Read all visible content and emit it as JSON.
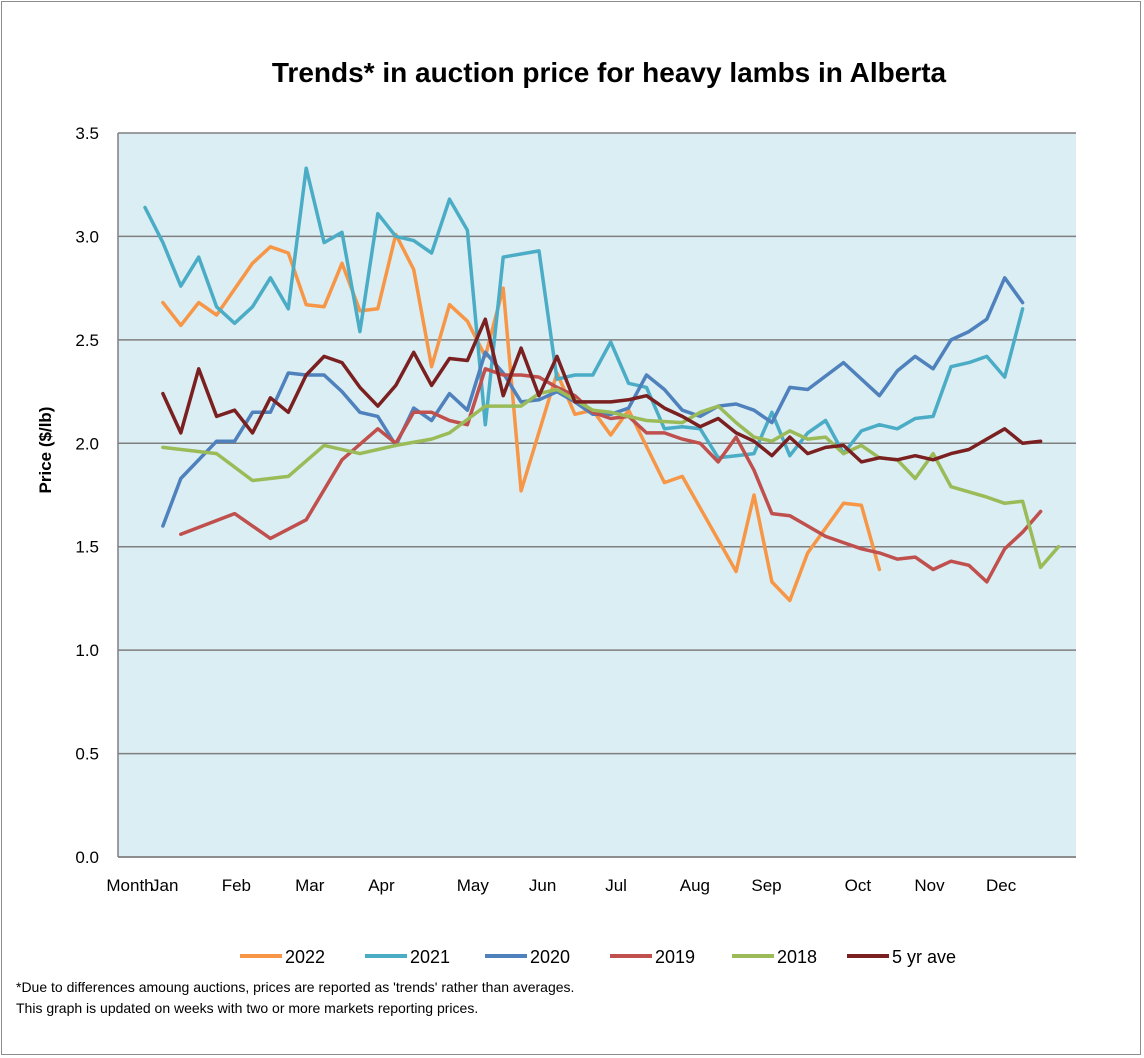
{
  "chart_data": {
    "type": "line",
    "title": "Trends* in auction price for heavy lambs in Alberta",
    "ylabel": "Price ($/lb)",
    "ylim": [
      0,
      3.5
    ],
    "yticks": [
      "0.0",
      "0.5",
      "1.0",
      "1.5",
      "2.0",
      "2.5",
      "3.0",
      "3.5"
    ],
    "x_first_label": "Month",
    "months": [
      "Jan",
      "Feb",
      "Mar",
      "Apr",
      "May",
      "Jun",
      "Jul",
      "Aug",
      "Sep",
      "Oct",
      "Nov",
      "Dec"
    ],
    "x_unit": "week",
    "grid": "horizontal",
    "legend_position": "bottom",
    "background_color": "#dbeef3",
    "series": [
      {
        "name": "2022",
        "color": "#f79646",
        "points": [
          [
            1,
            2.68
          ],
          [
            2,
            2.57
          ],
          [
            3,
            2.68
          ],
          [
            4,
            2.62
          ],
          [
            6,
            2.87
          ],
          [
            7,
            2.95
          ],
          [
            8,
            2.92
          ],
          [
            9,
            2.67
          ],
          [
            10,
            2.66
          ],
          [
            11,
            2.87
          ],
          [
            12,
            2.64
          ],
          [
            13,
            2.65
          ],
          [
            14,
            3.01
          ],
          [
            15,
            2.84
          ],
          [
            16,
            2.37
          ],
          [
            17,
            2.67
          ],
          [
            18,
            2.59
          ],
          [
            19,
            2.42
          ],
          [
            20,
            2.75
          ],
          [
            21,
            1.77
          ],
          [
            23,
            2.34
          ],
          [
            24,
            2.14
          ],
          [
            25,
            2.16
          ],
          [
            26,
            2.04
          ],
          [
            27,
            2.16
          ],
          [
            29,
            1.81
          ],
          [
            30,
            1.84
          ],
          [
            33,
            1.38
          ],
          [
            34,
            1.75
          ],
          [
            35,
            1.33
          ],
          [
            36,
            1.24
          ],
          [
            37,
            1.47
          ],
          [
            39,
            1.71
          ],
          [
            40,
            1.7
          ],
          [
            41,
            1.39
          ]
        ]
      },
      {
        "name": "2021",
        "color": "#4bacc6",
        "points": [
          [
            0,
            3.14
          ],
          [
            1,
            2.97
          ],
          [
            2,
            2.76
          ],
          [
            3,
            2.9
          ],
          [
            4,
            2.66
          ],
          [
            5,
            2.58
          ],
          [
            6,
            2.66
          ],
          [
            7,
            2.8
          ],
          [
            8,
            2.65
          ],
          [
            9,
            3.33
          ],
          [
            10,
            2.97
          ],
          [
            11,
            3.02
          ],
          [
            12,
            2.54
          ],
          [
            13,
            3.11
          ],
          [
            14,
            3.0
          ],
          [
            15,
            2.98
          ],
          [
            16,
            2.92
          ],
          [
            17,
            3.18
          ],
          [
            18,
            3.03
          ],
          [
            19,
            2.09
          ],
          [
            20,
            2.9
          ],
          [
            22,
            2.93
          ],
          [
            23,
            2.31
          ],
          [
            24,
            2.33
          ],
          [
            25,
            2.33
          ],
          [
            26,
            2.49
          ],
          [
            27,
            2.29
          ],
          [
            28,
            2.27
          ],
          [
            29,
            2.07
          ],
          [
            30,
            2.08
          ],
          [
            31,
            2.07
          ],
          [
            32,
            1.93
          ],
          [
            33,
            1.94
          ],
          [
            34,
            1.95
          ],
          [
            35,
            2.15
          ],
          [
            36,
            1.94
          ],
          [
            37,
            2.05
          ],
          [
            38,
            2.11
          ],
          [
            39,
            1.95
          ],
          [
            40,
            2.06
          ],
          [
            41,
            2.09
          ],
          [
            42,
            2.07
          ],
          [
            43,
            2.12
          ],
          [
            44,
            2.13
          ],
          [
            45,
            2.37
          ],
          [
            46,
            2.39
          ],
          [
            47,
            2.42
          ],
          [
            48,
            2.32
          ],
          [
            49,
            2.65
          ]
        ]
      },
      {
        "name": "2020",
        "color": "#4f81bd",
        "points": [
          [
            1,
            1.6
          ],
          [
            2,
            1.83
          ],
          [
            4,
            2.01
          ],
          [
            5,
            2.01
          ],
          [
            6,
            2.15
          ],
          [
            7,
            2.15
          ],
          [
            8,
            2.34
          ],
          [
            9,
            2.33
          ],
          [
            10,
            2.33
          ],
          [
            11,
            2.25
          ],
          [
            12,
            2.15
          ],
          [
            13,
            2.13
          ],
          [
            14,
            1.99
          ],
          [
            15,
            2.17
          ],
          [
            16,
            2.11
          ],
          [
            17,
            2.24
          ],
          [
            18,
            2.16
          ],
          [
            19,
            2.44
          ],
          [
            20,
            2.34
          ],
          [
            21,
            2.2
          ],
          [
            22,
            2.21
          ],
          [
            23,
            2.25
          ],
          [
            24,
            2.2
          ],
          [
            25,
            2.14
          ],
          [
            26,
            2.14
          ],
          [
            27,
            2.17
          ],
          [
            28,
            2.33
          ],
          [
            29,
            2.26
          ],
          [
            30,
            2.16
          ],
          [
            31,
            2.13
          ],
          [
            32,
            2.18
          ],
          [
            33,
            2.19
          ],
          [
            34,
            2.16
          ],
          [
            35,
            2.1
          ],
          [
            36,
            2.27
          ],
          [
            37,
            2.26
          ],
          [
            39,
            2.39
          ],
          [
            41,
            2.23
          ],
          [
            42,
            2.35
          ],
          [
            43,
            2.42
          ],
          [
            44,
            2.36
          ],
          [
            45,
            2.5
          ],
          [
            46,
            2.54
          ],
          [
            47,
            2.6
          ],
          [
            48,
            2.8
          ],
          [
            49,
            2.68
          ]
        ]
      },
      {
        "name": "2019",
        "color": "#c0504d",
        "points": [
          [
            2,
            1.56
          ],
          [
            5,
            1.66
          ],
          [
            7,
            1.54
          ],
          [
            9,
            1.63
          ],
          [
            11,
            1.92
          ],
          [
            13,
            2.07
          ],
          [
            14,
            2.0
          ],
          [
            15,
            2.15
          ],
          [
            16,
            2.15
          ],
          [
            17,
            2.11
          ],
          [
            18,
            2.09
          ],
          [
            19,
            2.36
          ],
          [
            20,
            2.33
          ],
          [
            21,
            2.33
          ],
          [
            22,
            2.32
          ],
          [
            23,
            2.27
          ],
          [
            24,
            2.23
          ],
          [
            25,
            2.15
          ],
          [
            26,
            2.12
          ],
          [
            27,
            2.13
          ],
          [
            28,
            2.05
          ],
          [
            29,
            2.05
          ],
          [
            30,
            2.02
          ],
          [
            31,
            2.0
          ],
          [
            32,
            1.91
          ],
          [
            33,
            2.03
          ],
          [
            34,
            1.87
          ],
          [
            35,
            1.66
          ],
          [
            36,
            1.65
          ],
          [
            37,
            1.6
          ],
          [
            38,
            1.55
          ],
          [
            39,
            1.52
          ],
          [
            40,
            1.49
          ],
          [
            41,
            1.47
          ],
          [
            42,
            1.44
          ],
          [
            43,
            1.45
          ],
          [
            44,
            1.39
          ],
          [
            45,
            1.43
          ],
          [
            46,
            1.41
          ],
          [
            47,
            1.33
          ],
          [
            48,
            1.49
          ],
          [
            49,
            1.57
          ],
          [
            50,
            1.67
          ]
        ]
      },
      {
        "name": "2018",
        "color": "#9bbb59",
        "points": [
          [
            1,
            1.98
          ],
          [
            4,
            1.95
          ],
          [
            6,
            1.82
          ],
          [
            8,
            1.84
          ],
          [
            10,
            1.99
          ],
          [
            12,
            1.95
          ],
          [
            14,
            1.99
          ],
          [
            16,
            2.02
          ],
          [
            17,
            2.05
          ],
          [
            19,
            2.18
          ],
          [
            20,
            2.18
          ],
          [
            21,
            2.18
          ],
          [
            22,
            2.24
          ],
          [
            23,
            2.26
          ],
          [
            24,
            2.21
          ],
          [
            25,
            2.16
          ],
          [
            26,
            2.15
          ],
          [
            27,
            2.13
          ],
          [
            28,
            2.11
          ],
          [
            30,
            2.1
          ],
          [
            31,
            2.15
          ],
          [
            32,
            2.18
          ],
          [
            33,
            2.1
          ],
          [
            34,
            2.03
          ],
          [
            35,
            2.01
          ],
          [
            36,
            2.06
          ],
          [
            37,
            2.02
          ],
          [
            38,
            2.03
          ],
          [
            39,
            1.95
          ],
          [
            40,
            1.99
          ],
          [
            41,
            1.93
          ],
          [
            42,
            1.92
          ],
          [
            43,
            1.83
          ],
          [
            44,
            1.95
          ],
          [
            45,
            1.79
          ],
          [
            47,
            1.74
          ],
          [
            48,
            1.71
          ],
          [
            49,
            1.72
          ],
          [
            50,
            1.4
          ],
          [
            51,
            1.5
          ]
        ]
      },
      {
        "name": "5 yr ave",
        "color": "#7b2021",
        "points": [
          [
            1,
            2.24
          ],
          [
            2,
            2.05
          ],
          [
            3,
            2.36
          ],
          [
            4,
            2.13
          ],
          [
            5,
            2.16
          ],
          [
            6,
            2.05
          ],
          [
            7,
            2.22
          ],
          [
            8,
            2.15
          ],
          [
            9,
            2.33
          ],
          [
            10,
            2.42
          ],
          [
            11,
            2.39
          ],
          [
            12,
            2.27
          ],
          [
            13,
            2.18
          ],
          [
            14,
            2.28
          ],
          [
            15,
            2.44
          ],
          [
            16,
            2.28
          ],
          [
            17,
            2.41
          ],
          [
            18,
            2.4
          ],
          [
            19,
            2.6
          ],
          [
            20,
            2.23
          ],
          [
            21,
            2.46
          ],
          [
            22,
            2.23
          ],
          [
            23,
            2.42
          ],
          [
            24,
            2.2
          ],
          [
            25,
            2.2
          ],
          [
            26,
            2.2
          ],
          [
            27,
            2.21
          ],
          [
            28,
            2.23
          ],
          [
            29,
            2.17
          ],
          [
            30,
            2.13
          ],
          [
            31,
            2.08
          ],
          [
            32,
            2.12
          ],
          [
            33,
            2.05
          ],
          [
            34,
            2.01
          ],
          [
            35,
            1.94
          ],
          [
            36,
            2.03
          ],
          [
            37,
            1.95
          ],
          [
            38,
            1.98
          ],
          [
            39,
            1.99
          ],
          [
            40,
            1.91
          ],
          [
            41,
            1.93
          ],
          [
            42,
            1.92
          ],
          [
            43,
            1.94
          ],
          [
            44,
            1.92
          ],
          [
            45,
            1.95
          ],
          [
            46,
            1.97
          ],
          [
            47,
            2.02
          ],
          [
            48,
            2.07
          ],
          [
            49,
            2.0
          ],
          [
            50,
            2.01
          ]
        ]
      }
    ],
    "footnote": [
      "*Due to differences amoung auctions, prices are reported as 'trends' rather than averages.",
      "This graph is updated on weeks with two or more markets reporting prices."
    ]
  }
}
